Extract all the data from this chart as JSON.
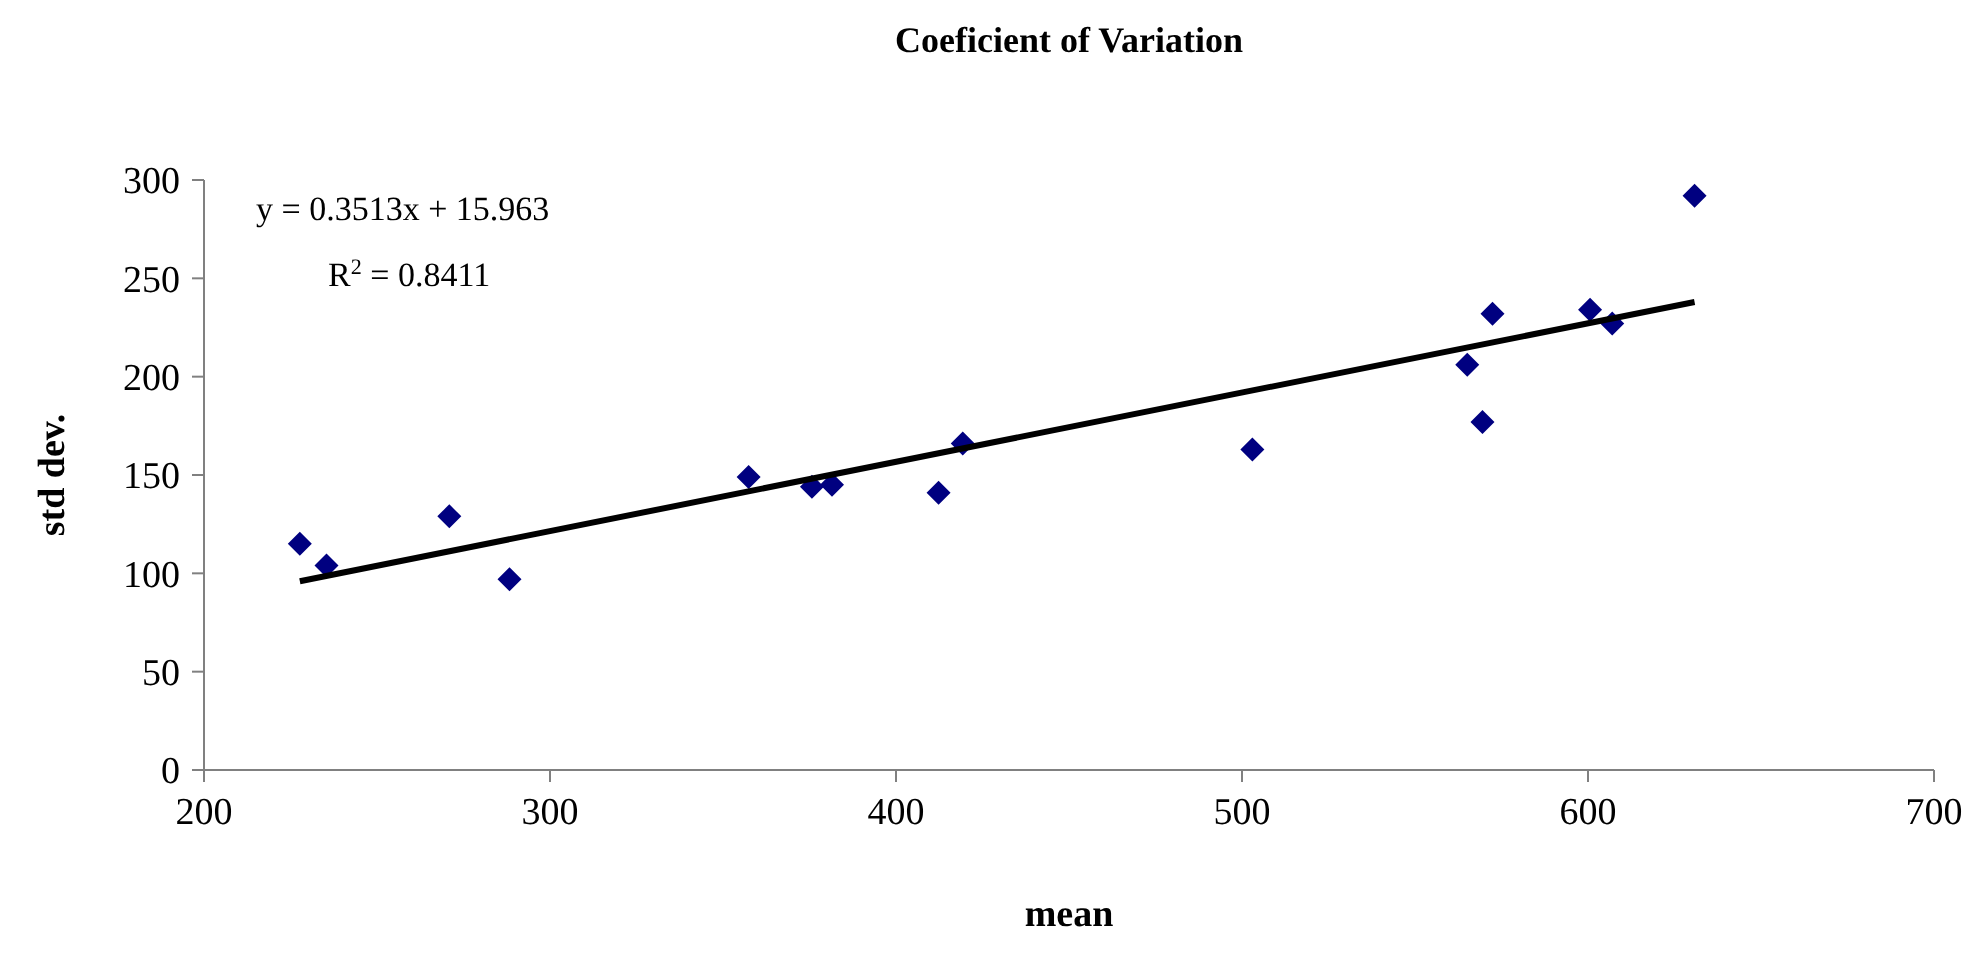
{
  "chart_data": {
    "type": "scatter",
    "title": "Coeficient of Variation",
    "xlabel": "mean",
    "ylabel": "std dev.",
    "xlim": [
      200,
      700
    ],
    "xticks": [
      200,
      300,
      400,
      500,
      600,
      700
    ],
    "ylim": [
      0,
      300
    ],
    "yticks": [
      0,
      50,
      100,
      150,
      200,
      250,
      300
    ],
    "grid": false,
    "marker": "diamond",
    "x": [
      227.7,
      235.4,
      270.9,
      288.3,
      357.4,
      375.7,
      381.5,
      412.3,
      419.3,
      503.0,
      565.1,
      569.5,
      572.4,
      600.6,
      607.0,
      630.8
    ],
    "series": [
      {
        "color": "#000080",
        "values": [
          115,
          104,
          129,
          97,
          149,
          144,
          145,
          141,
          166,
          163,
          206,
          177,
          232,
          234,
          227,
          292
        ]
      },
      {
        "type": "line",
        "color": "#000000",
        "x": [
          227.7,
          630.8
        ],
        "values": [
          96,
          238
        ],
        "line_style": "solid",
        "marker": "none"
      }
    ],
    "annotations": [
      "y = 0.3513x + 15.963",
      "R$^{2}$ = 0.8411"
    ]
  }
}
